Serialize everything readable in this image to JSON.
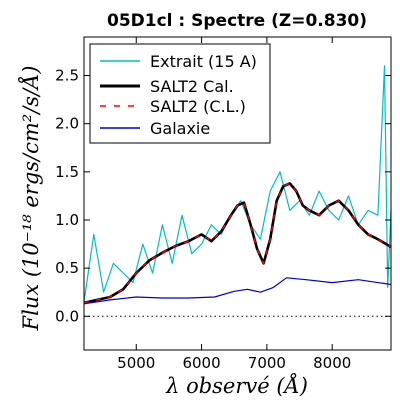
{
  "chart_data": {
    "type": "line",
    "title": "05D1cl : Spectre (Z=0.830)",
    "xlabel": "λ observé (Å)",
    "ylabel": "Flux (10⁻¹⁸ ergs/cm²/s/Å)",
    "xlim": [
      4200,
      8900
    ],
    "ylim": [
      -0.35,
      2.9
    ],
    "xticks": [
      5000,
      6000,
      7000,
      8000
    ],
    "yticks": [
      0.0,
      0.5,
      1.0,
      1.5,
      2.0,
      2.5
    ],
    "xtick_labels": [
      "5000",
      "6000",
      "7000",
      "8000"
    ],
    "ytick_labels": [
      "0.0",
      "0.5",
      "1.0",
      "1.5",
      "2.0",
      "2.5"
    ],
    "legend_position": "upper-left",
    "grid": false,
    "zero_line": 0.0,
    "series": [
      {
        "name": "Extrait (15 A)",
        "color": "#00bfbf",
        "style": "solid-thin",
        "x": [
          4200,
          4350,
          4500,
          4650,
          4800,
          4950,
          5100,
          5250,
          5400,
          5550,
          5700,
          5850,
          6000,
          6150,
          6300,
          6450,
          6600,
          6750,
          6900,
          7050,
          7200,
          7350,
          7500,
          7650,
          7800,
          7950,
          8100,
          8250,
          8400,
          8550,
          8700,
          8800,
          8850,
          8900
        ],
        "y": [
          0.15,
          0.85,
          0.25,
          0.55,
          0.45,
          0.35,
          0.75,
          0.45,
          0.95,
          0.55,
          1.05,
          0.65,
          0.75,
          0.95,
          0.85,
          1.05,
          1.2,
          0.95,
          0.8,
          1.3,
          1.5,
          1.1,
          1.2,
          1.05,
          1.3,
          1.1,
          1.0,
          1.25,
          0.95,
          1.1,
          1.05,
          2.6,
          0.3,
          1.1
        ]
      },
      {
        "name": "SALT2 Cal.",
        "color": "#000000",
        "style": "solid-thick",
        "x": [
          4200,
          4400,
          4600,
          4800,
          5000,
          5200,
          5400,
          5600,
          5800,
          6000,
          6150,
          6300,
          6450,
          6550,
          6650,
          6750,
          6850,
          6950,
          7050,
          7150,
          7250,
          7350,
          7450,
          7550,
          7650,
          7800,
          7950,
          8100,
          8250,
          8400,
          8550,
          8700,
          8900
        ],
        "y": [
          0.14,
          0.17,
          0.2,
          0.28,
          0.45,
          0.58,
          0.66,
          0.73,
          0.78,
          0.85,
          0.78,
          0.88,
          1.05,
          1.15,
          1.18,
          0.95,
          0.7,
          0.55,
          0.8,
          1.2,
          1.35,
          1.38,
          1.3,
          1.15,
          1.1,
          1.05,
          1.15,
          1.2,
          1.1,
          0.95,
          0.85,
          0.8,
          0.72
        ]
      },
      {
        "name": "SALT2 (C.L.)",
        "color": "#ff0000",
        "style": "dashed",
        "x": [
          4200,
          4400,
          4600,
          4800,
          5000,
          5200,
          5400,
          5600,
          5800,
          6000,
          6150,
          6300,
          6450,
          6550,
          6650,
          6750,
          6850,
          6950,
          7050,
          7150,
          7250,
          7350,
          7450,
          7550,
          7650,
          7800,
          7950,
          8100,
          8250,
          8400,
          8550,
          8700,
          8900
        ],
        "y": [
          0.14,
          0.17,
          0.2,
          0.28,
          0.45,
          0.58,
          0.66,
          0.73,
          0.78,
          0.85,
          0.78,
          0.88,
          1.05,
          1.15,
          1.18,
          0.95,
          0.7,
          0.55,
          0.8,
          1.2,
          1.35,
          1.38,
          1.3,
          1.15,
          1.1,
          1.05,
          1.15,
          1.2,
          1.1,
          0.95,
          0.85,
          0.8,
          0.72
        ]
      },
      {
        "name": "Galaxie",
        "color": "#0000cc",
        "style": "solid-thin",
        "x": [
          4200,
          4600,
          5000,
          5400,
          5800,
          6200,
          6500,
          6700,
          6900,
          7100,
          7300,
          7600,
          8000,
          8400,
          8900
        ],
        "y": [
          0.13,
          0.17,
          0.2,
          0.19,
          0.19,
          0.2,
          0.26,
          0.28,
          0.25,
          0.3,
          0.4,
          0.38,
          0.35,
          0.38,
          0.33
        ]
      }
    ]
  }
}
